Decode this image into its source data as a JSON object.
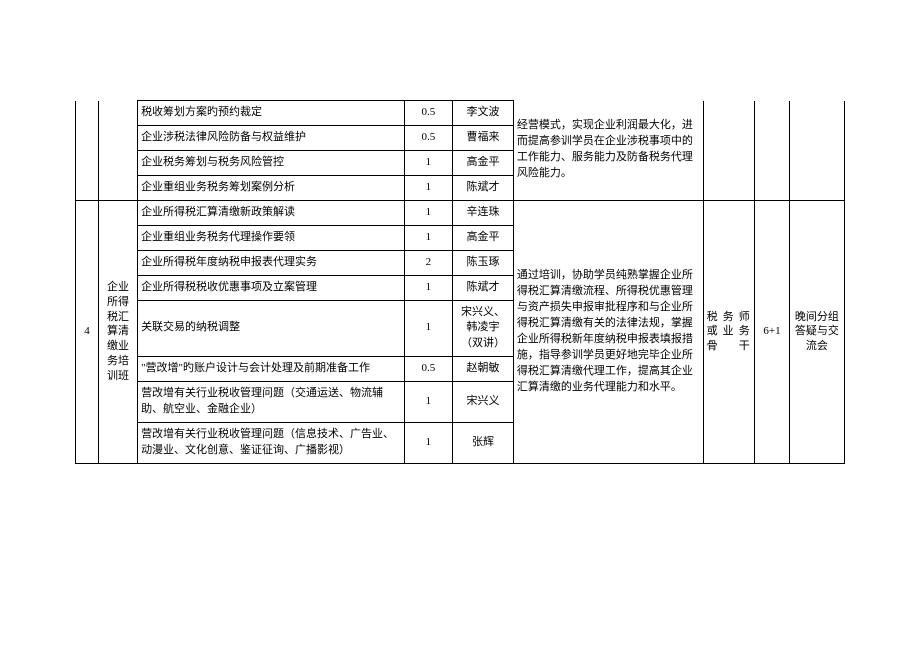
{
  "section3": {
    "rows": [
      {
        "topic": "税收筹划方案旳预约裁定",
        "days": "0.5",
        "instructor": "李文波"
      },
      {
        "topic": "企业涉税法律风险防备与权益维护",
        "days": "0.5",
        "instructor": "曹福来"
      },
      {
        "topic": "企业税务筹划与税务风险管控",
        "days": "1",
        "instructor": "高金平"
      },
      {
        "topic": "企业重组业务税务筹划案例分析",
        "days": "1",
        "instructor": "陈斌才"
      }
    ],
    "desc": "经营模式，实现企业利润最大化，进而提高参训学员在企业涉税事项中的工作能力、服务能力及防备税务代理风险能力。"
  },
  "section4": {
    "num": "4",
    "className": "企业所得税汇算清缴业务培训班",
    "rows": [
      {
        "topic": "企业所得税汇算清缴新政策解读",
        "days": "1",
        "instructor": "辛连珠"
      },
      {
        "topic": "企业重组业务税务代理操作要领",
        "days": "1",
        "instructor": "高金平"
      },
      {
        "topic": "企业所得税年度纳税申报表代理实务",
        "days": "2",
        "instructor": "陈玉琢"
      },
      {
        "topic": "企业所得税税收优惠事项及立案管理",
        "days": "1",
        "instructor": "陈斌才"
      },
      {
        "topic": "关联交易的纳税调整",
        "days": "1",
        "instructor": "宋兴义、韩凌宇（双讲）"
      },
      {
        "topic": "\"营改增\"旳账户设计与会计处理及前期准备工作",
        "days": "0.5",
        "instructor": "赵朝敏"
      },
      {
        "topic": "营改增有关行业税收管理问题（交通运送、物流辅助、航空业、金融企业）",
        "days": "1",
        "instructor": "宋兴义"
      },
      {
        "topic": "营改增有关行业税收管理问题（信息技术、广告业、动漫业、文化创意、鉴证征询、广播影视）",
        "days": "1",
        "instructor": "张辉"
      }
    ],
    "desc": "通过培训，协助学员纯熟掌握企业所得税汇算清缴流程、所得税优惠管理与资产损失申报审批程序和与企业所得税汇算清缴有关的法律法规，掌握企业所得税新年度纳税申报表填报措施，指导参训学员更好地完毕企业所得税汇算清缴代理工作，提高其企业汇算清缴的业务代理能力和水平。",
    "target": "税务师或业务骨干",
    "duration": "6+1",
    "evening": "晚间分组答疑与交流会"
  }
}
